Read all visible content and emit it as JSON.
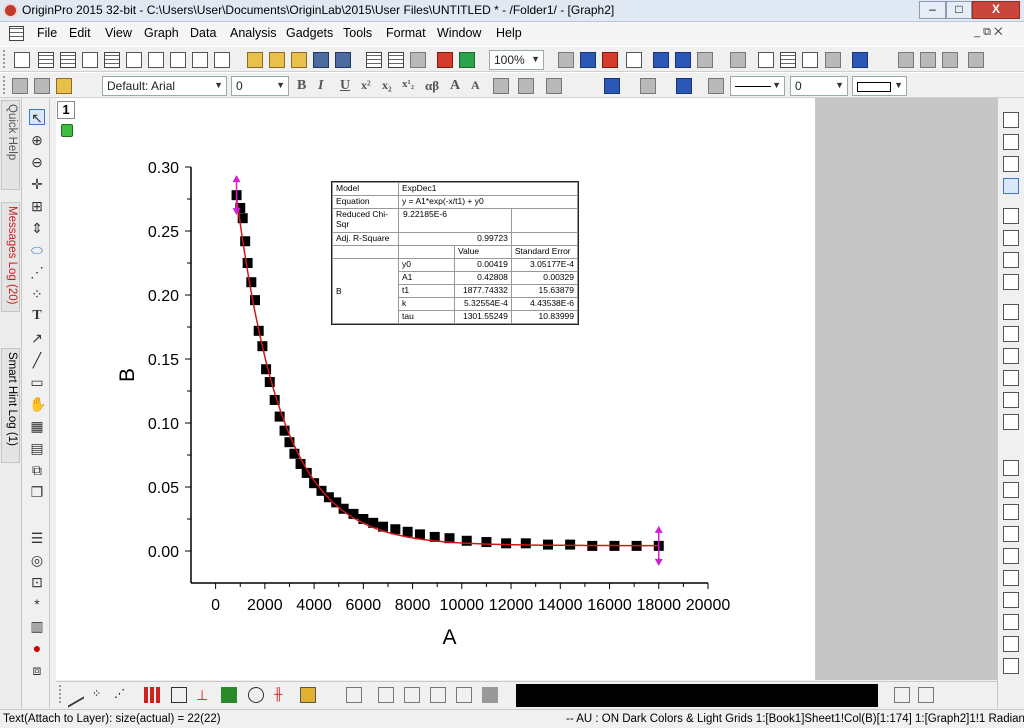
{
  "window": {
    "title": "OriginPro 2015 32-bit - C:\\Users\\User\\Documents\\OriginLab\\2015\\User Files\\UNTITLED * - /Folder1/ - [Graph2]",
    "minimize": "–",
    "maximize": "□",
    "close": "X"
  },
  "menu": {
    "items": [
      "File",
      "Edit",
      "View",
      "Graph",
      "Data",
      "Analysis",
      "Gadgets",
      "Tools",
      "Format",
      "Window",
      "Help"
    ],
    "mdi_controls": "_ ⧉ ✕"
  },
  "toolbar": {
    "zoom": "100%",
    "font_name": "Default: Arial",
    "font_size": "0",
    "line_width": "0",
    "format_labels": [
      "B",
      "I",
      "U",
      "x²",
      "x₂",
      "x¹₂",
      "αβ",
      "A",
      "A"
    ]
  },
  "left_tabs": {
    "quick_help": "Quick Help",
    "messages_log": "Messages Log (20)",
    "smart_hint_log": "Smart Hint Log (1)"
  },
  "left_tools": [
    "pointer-icon",
    "zoom-in-icon",
    "zoom-out-icon",
    "data-reader-icon",
    "screen-reader-icon",
    "data-selector-icon",
    "scale-icon",
    "mask-icon",
    "draw-data-icon",
    "text-tool-icon",
    "arrow-tool-icon",
    "line-tool-icon",
    "rectangle-tool-icon",
    "hand-icon",
    "region-icon",
    "insert-graph-icon",
    "add-layer-icon",
    "copy-format-icon"
  ],
  "layer": {
    "number": "1"
  },
  "fit_table": {
    "model_label": "Model",
    "model_value": "ExpDec1",
    "equation_label": "Equation",
    "equation_value": "y = A1*exp(-x/t1) + y0",
    "reduced_chisqr_label": "Reduced Chi-Sqr",
    "reduced_chisqr_value": "9.22185E-6",
    "adj_rsquare_label": "Adj. R-Square",
    "adj_rsquare_value": "0.99723",
    "value_header": "Value",
    "stderr_header": "Standard Error",
    "group_label": "B",
    "params": [
      {
        "name": "y0",
        "value": "0.00419",
        "error": "3.05177E-4"
      },
      {
        "name": "A1",
        "value": "0.42808",
        "error": "0.00329"
      },
      {
        "name": "t1",
        "value": "1877.74332",
        "error": "15.63879"
      },
      {
        "name": "k",
        "value": "5.32554E-4",
        "error": "4.43538E-6"
      },
      {
        "name": "tau",
        "value": "1301.55249",
        "error": "10.83999"
      }
    ]
  },
  "chart_data": {
    "type": "scatter",
    "xlabel": "A",
    "ylabel": "B",
    "xlim": [
      -1000,
      20000
    ],
    "ylim": [
      -0.025,
      0.3
    ],
    "x_ticks": [
      "0",
      "2000",
      "4000",
      "6000",
      "8000",
      "10000",
      "12000",
      "14000",
      "16000",
      "18000",
      "20000"
    ],
    "y_ticks": [
      "0.00",
      "0.05",
      "0.10",
      "0.15",
      "0.20",
      "0.25",
      "0.30"
    ],
    "series": [
      {
        "x": [
          850,
          1000,
          1100,
          1200,
          1300,
          1450,
          1600,
          1750,
          1900,
          2050,
          2200,
          2400,
          2600,
          2800,
          3000,
          3200,
          3450,
          3700,
          4000,
          4300,
          4600,
          4900,
          5200,
          5600,
          6000,
          6400,
          6800,
          7300,
          7800,
          8300,
          8900,
          9500,
          10200,
          11000,
          11800,
          12600,
          13500,
          14400,
          15300,
          16200,
          17100,
          18000
        ],
        "y": [
          0.278,
          0.268,
          0.26,
          0.242,
          0.225,
          0.21,
          0.196,
          0.172,
          0.16,
          0.142,
          0.132,
          0.118,
          0.105,
          0.094,
          0.085,
          0.076,
          0.068,
          0.061,
          0.053,
          0.047,
          0.042,
          0.038,
          0.033,
          0.029,
          0.025,
          0.022,
          0.019,
          0.017,
          0.015,
          0.013,
          0.011,
          0.01,
          0.008,
          0.007,
          0.006,
          0.006,
          0.005,
          0.005,
          0.004,
          0.004,
          0.004,
          0.004
        ]
      }
    ],
    "fit": {
      "model": "y = A1*exp(-x/t1) + y0",
      "A1": 0.42808,
      "t1": 1877.74332,
      "y0": 0.00419
    },
    "marker_color": "#000000",
    "fit_color": "#d01818",
    "handle_color": "#d020d0"
  },
  "status": {
    "left": "Text(Attach to Layer): size(actual) = 22(22)",
    "right": "-- AU : ON  Dark Colors & Light Grids  1:[Book1]Sheet1!Col(B)[1:174]  1:[Graph2]1!1  Radian"
  }
}
